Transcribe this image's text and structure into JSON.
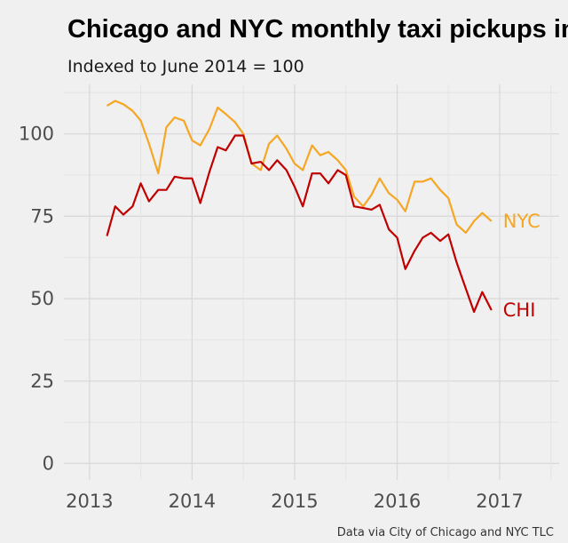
{
  "chart_data": {
    "type": "line",
    "title": "Chicago and NYC monthly taxi pickups index",
    "subtitle": "Indexed to June 2014 = 100",
    "caption": "Data via City of Chicago and NYC TLC",
    "xlabel": "",
    "ylabel": "",
    "xlim": [
      2012.75,
      2017.58
    ],
    "ylim": [
      -5,
      115
    ],
    "x_ticks": [
      2013,
      2014,
      2015,
      2016,
      2017
    ],
    "y_ticks": [
      0,
      25,
      50,
      75,
      100
    ],
    "grid": true,
    "legend": "direct labels at line ends",
    "series": [
      {
        "name": "NYC",
        "color": "#f5a623",
        "x": [
          2013.17,
          2013.25,
          2013.33,
          2013.42,
          2013.5,
          2013.58,
          2013.67,
          2013.75,
          2013.83,
          2013.92,
          2014.0,
          2014.08,
          2014.17,
          2014.25,
          2014.33,
          2014.42,
          2014.5,
          2014.58,
          2014.67,
          2014.75,
          2014.83,
          2014.92,
          2015.0,
          2015.08,
          2015.17,
          2015.25,
          2015.33,
          2015.42,
          2015.5,
          2015.58,
          2015.67,
          2015.75,
          2015.83,
          2015.92,
          2016.0,
          2016.08,
          2016.17,
          2016.25,
          2016.33,
          2016.42,
          2016.5,
          2016.58,
          2016.67,
          2016.75,
          2016.83,
          2016.92
        ],
        "values": [
          108.5,
          110,
          109,
          107,
          104,
          97,
          88,
          102,
          105,
          104,
          98,
          96.5,
          101.5,
          108,
          106,
          103.5,
          100,
          91,
          89,
          97,
          99.5,
          95.5,
          91,
          89,
          96.5,
          93.5,
          94.5,
          92,
          89,
          81,
          78,
          81.5,
          86.5,
          82,
          80,
          76.5,
          85.5,
          85.5,
          86.5,
          83,
          80.5,
          72.5,
          70,
          73.5,
          76,
          73.5
        ]
      },
      {
        "name": "CHI",
        "color": "#c00000",
        "x": [
          2013.17,
          2013.25,
          2013.33,
          2013.42,
          2013.5,
          2013.58,
          2013.67,
          2013.75,
          2013.83,
          2013.92,
          2014.0,
          2014.08,
          2014.17,
          2014.25,
          2014.33,
          2014.42,
          2014.5,
          2014.58,
          2014.67,
          2014.75,
          2014.83,
          2014.92,
          2015.0,
          2015.08,
          2015.17,
          2015.25,
          2015.33,
          2015.42,
          2015.5,
          2015.58,
          2015.67,
          2015.75,
          2015.83,
          2015.92,
          2016.0,
          2016.08,
          2016.17,
          2016.25,
          2016.33,
          2016.42,
          2016.5,
          2016.58,
          2016.67,
          2016.75,
          2016.83,
          2016.92
        ],
        "values": [
          69,
          78,
          75.5,
          78,
          85,
          79.5,
          83,
          83,
          87,
          86.5,
          86.5,
          79,
          88.5,
          96,
          95,
          99.5,
          99.5,
          91,
          91.5,
          89,
          92,
          89,
          84,
          78,
          88,
          88,
          85,
          89,
          87.5,
          78,
          77.5,
          77,
          78.5,
          71,
          68.5,
          59,
          64.5,
          68.5,
          70,
          67.5,
          69.5,
          61,
          53,
          46,
          52,
          46.5
        ]
      }
    ]
  }
}
